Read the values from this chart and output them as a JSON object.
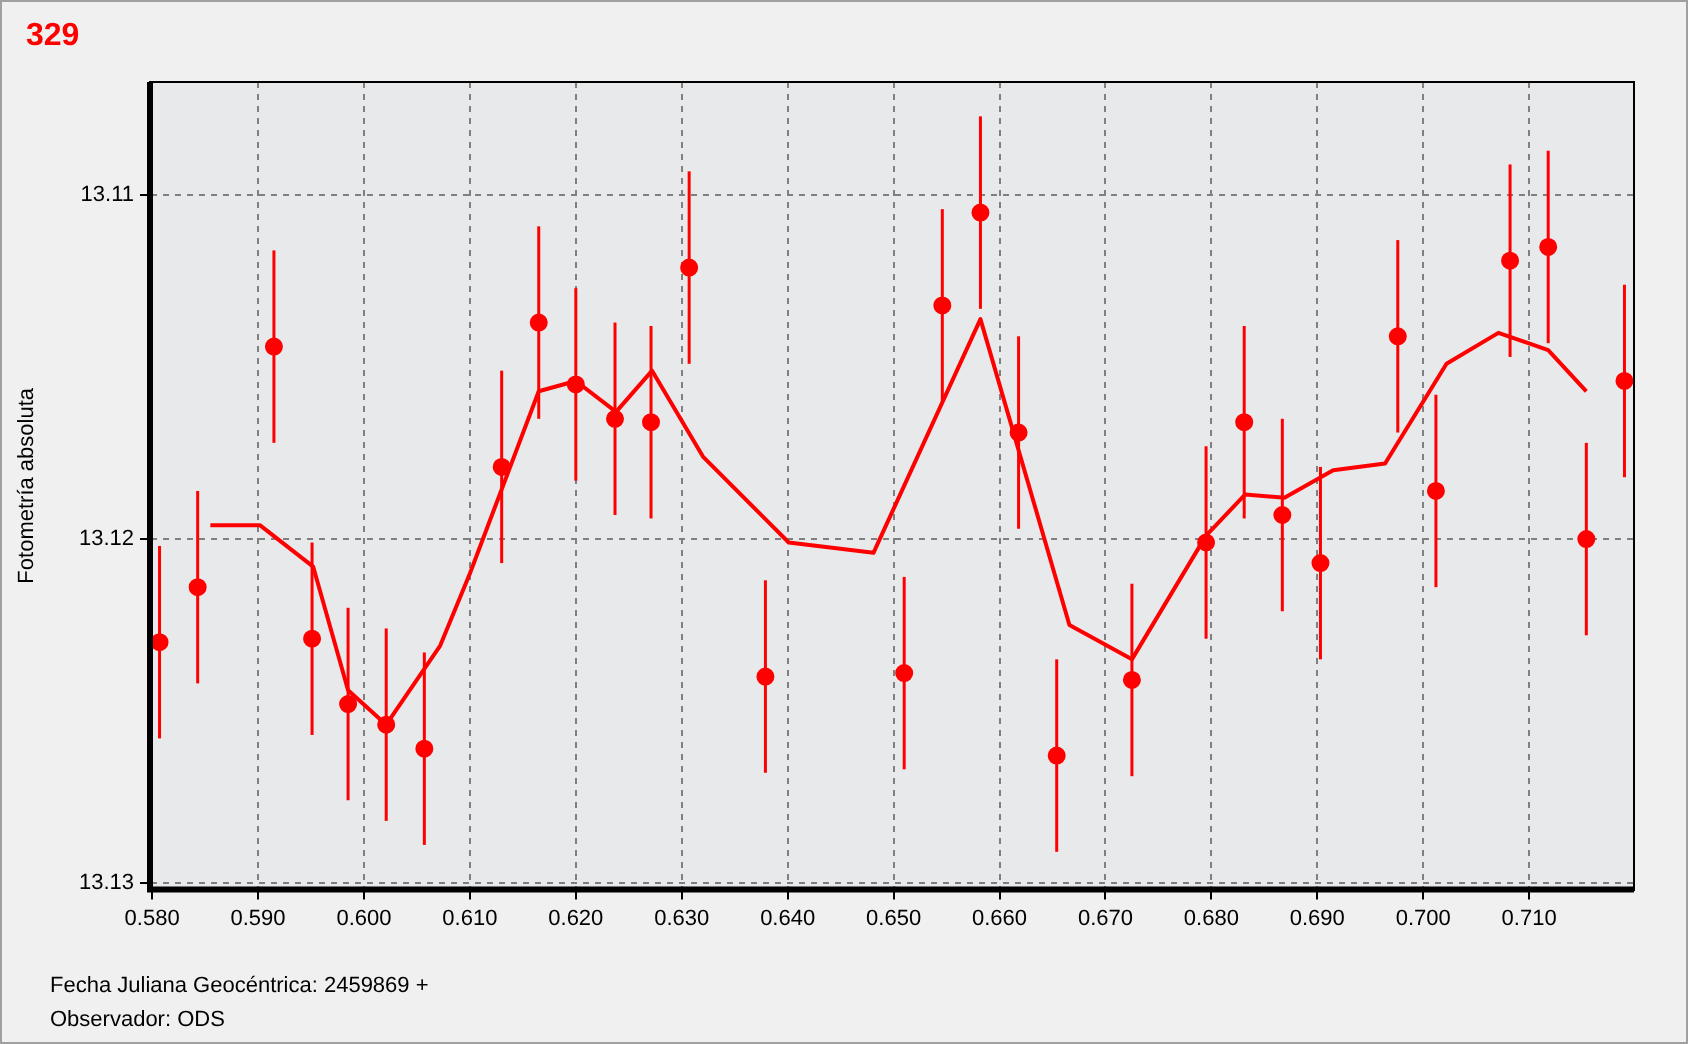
{
  "chart_data": {
    "type": "scatter",
    "title": "329",
    "ylabel": "Fotometría absoluta",
    "xlabel": "Fecha Juliana Geocéntrica: 2459869 +",
    "annotations": [
      "Observador: ODS"
    ],
    "xlim": [
      0.5798,
      0.7199
    ],
    "xticks": [
      {
        "value": 0.58,
        "label": "0.580"
      },
      {
        "value": 0.59,
        "label": "0.590"
      },
      {
        "value": 0.6,
        "label": "0.600"
      },
      {
        "value": 0.61,
        "label": "0.610"
      },
      {
        "value": 0.62,
        "label": "0.620"
      },
      {
        "value": 0.63,
        "label": "0.630"
      },
      {
        "value": 0.64,
        "label": "0.640"
      },
      {
        "value": 0.65,
        "label": "0.650"
      },
      {
        "value": 0.66,
        "label": "0.660"
      },
      {
        "value": 0.67,
        "label": "0.670"
      },
      {
        "value": 0.68,
        "label": "0.680"
      },
      {
        "value": 0.69,
        "label": "0.690"
      },
      {
        "value": 0.7,
        "label": "0.700"
      },
      {
        "value": 0.71,
        "label": "0.710"
      }
    ],
    "ylim": [
      13.1302,
      13.1067
    ],
    "yticks": [
      13.11,
      13.12,
      13.13
    ],
    "grid": true,
    "legend": false,
    "line_style": "solid",
    "series": [
      {
        "marker": "circle",
        "color": "#ff0000",
        "x": [
          0.5807,
          0.5843,
          0.5915,
          0.5951,
          0.5985,
          0.6021,
          0.6057,
          0.613,
          0.6165,
          0.62,
          0.6237,
          0.6271,
          0.6307,
          0.6379,
          0.651,
          0.6546,
          0.6582,
          0.6618,
          0.6654,
          0.6725,
          0.6795,
          0.6831,
          0.6867,
          0.6903,
          0.6976,
          0.7012,
          0.7082,
          0.7118,
          0.7154,
          0.719
        ],
        "values": [
          13.123,
          13.1214,
          13.1144,
          13.1229,
          13.1248,
          13.1254,
          13.1261,
          13.1179,
          13.1137,
          13.1155,
          13.1165,
          13.1166,
          13.1121,
          13.124,
          13.1239,
          13.1132,
          13.1105,
          13.1169,
          13.1263,
          13.1241,
          13.1201,
          13.1166,
          13.1193,
          13.1207,
          13.1141,
          13.1186,
          13.1119,
          13.1115,
          13.12,
          13.1154
        ],
        "errors": [
          0.0028,
          0.0028,
          0.0028,
          0.0028,
          0.0028,
          0.0028,
          0.0028,
          0.0028,
          0.0028,
          0.0028,
          0.0028,
          0.0028,
          0.0028,
          0.0028,
          0.0028,
          0.0028,
          0.0028,
          0.0028,
          0.0028,
          0.0028,
          0.0028,
          0.0028,
          0.0028,
          0.0028,
          0.0028,
          0.0028,
          0.0028,
          0.0028,
          0.0028,
          0.0028
        ]
      },
      {
        "type": "line",
        "marker": "none",
        "color": "#ff0000",
        "x": [
          0.5855,
          0.5902,
          0.5952,
          0.5985,
          0.6021,
          0.6072,
          0.61,
          0.6165,
          0.62,
          0.6238,
          0.6272,
          0.632,
          0.6401,
          0.6481,
          0.6582,
          0.6666,
          0.6725,
          0.6795,
          0.6832,
          0.6869,
          0.6915,
          0.6964,
          0.7022,
          0.7071,
          0.7118,
          0.7154
        ],
        "values": [
          13.1196,
          13.1196,
          13.1208,
          13.1244,
          13.1254,
          13.1231,
          13.121,
          13.1157,
          13.1154,
          13.1163,
          13.1151,
          13.1176,
          13.1201,
          13.1204,
          13.1136,
          13.1225,
          13.1235,
          13.1199,
          13.1187,
          13.1188,
          13.118,
          13.1178,
          13.1149,
          13.114,
          13.1145,
          13.1157
        ]
      }
    ]
  }
}
